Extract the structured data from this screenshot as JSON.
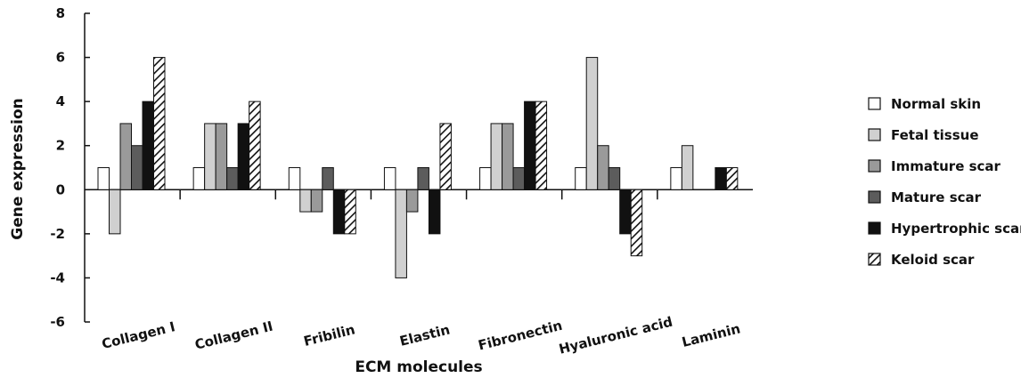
{
  "chart_data": {
    "type": "bar",
    "title": "",
    "xlabel": "ECM molecules",
    "ylabel": "Gene expression",
    "ylim": [
      -6,
      8
    ],
    "yticks": [
      8,
      6,
      4,
      2,
      0,
      -2,
      -4,
      -6
    ],
    "ytick_labels": [
      "8",
      "6",
      "4",
      "2",
      "0",
      "-2",
      "-4",
      "-6"
    ],
    "grid": false,
    "legend_position": "right",
    "categories": [
      "Collagen I",
      "Collagen II",
      "Fribilin",
      "Elastin",
      "Fibronectin",
      "Hyaluronic acid",
      "Laminin"
    ],
    "series": [
      {
        "name": "Normal skin",
        "color": "#ffffff",
        "pattern": "none",
        "values": [
          1,
          1,
          1,
          1,
          1,
          1,
          1
        ]
      },
      {
        "name": "Fetal tissue",
        "color": "#d0d0d0",
        "pattern": "none",
        "values": [
          -2,
          3,
          -1,
          -4,
          3,
          6,
          2
        ]
      },
      {
        "name": "Immature scar",
        "color": "#9a9a9a",
        "pattern": "none",
        "values": [
          3,
          3,
          -1,
          -1,
          3,
          2,
          null
        ]
      },
      {
        "name": "Mature scar",
        "color": "#5c5c5c",
        "pattern": "none",
        "values": [
          2,
          1,
          1,
          1,
          1,
          1,
          null
        ]
      },
      {
        "name": "Hypertrophic scar",
        "color": "#111111",
        "pattern": "none",
        "values": [
          4,
          3,
          -2,
          -2,
          4,
          -2,
          1
        ]
      },
      {
        "name": "Keloid scar",
        "color": "#111111",
        "pattern": "diagonal-hatch",
        "values": [
          6,
          4,
          -2,
          3,
          4,
          -3,
          1
        ]
      }
    ]
  }
}
